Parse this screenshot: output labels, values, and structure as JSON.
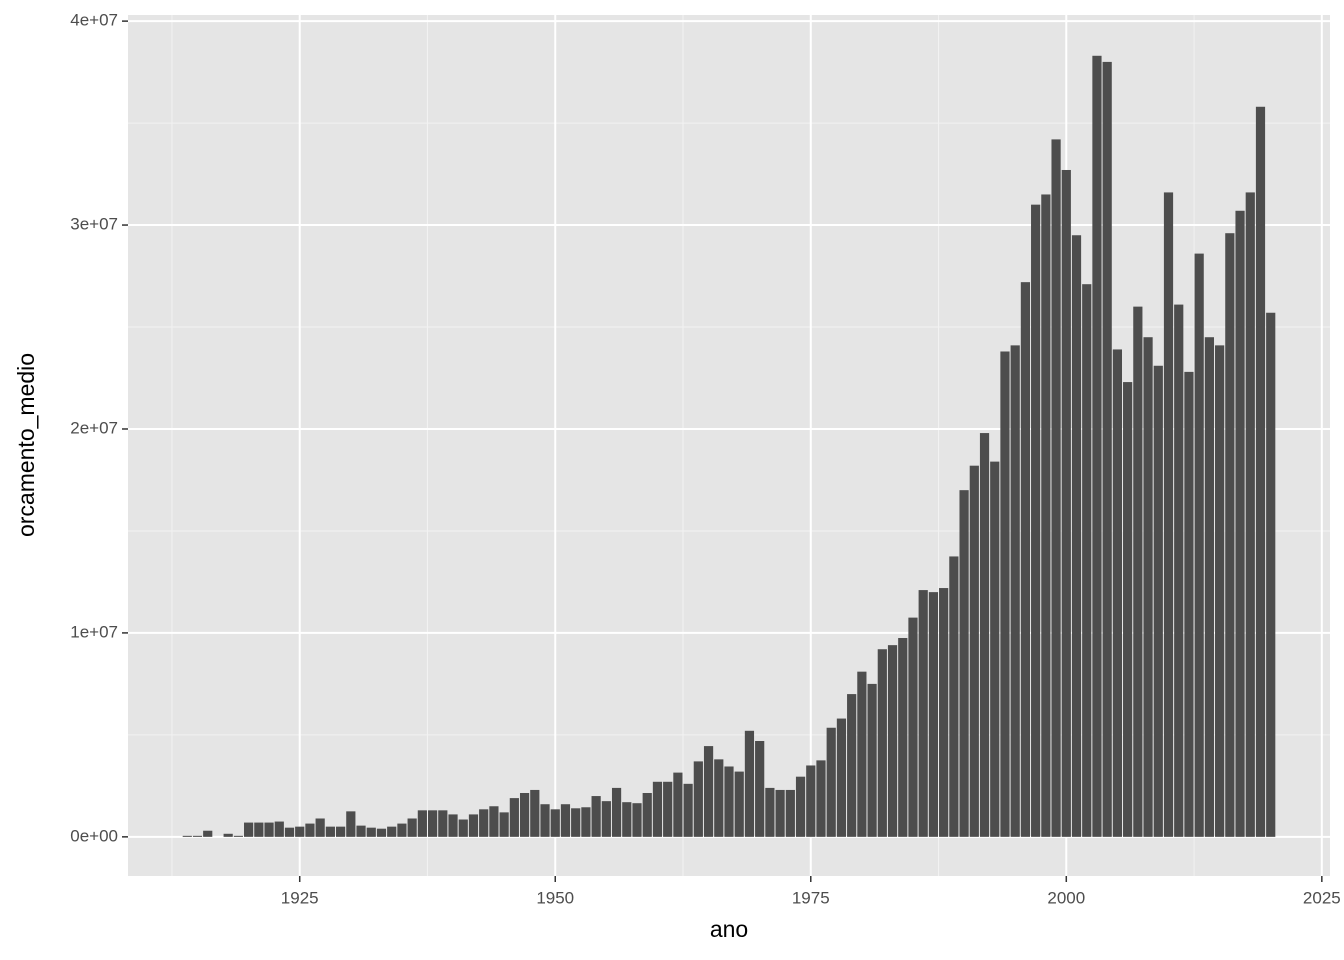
{
  "chart_data": {
    "type": "bar",
    "x_label": "ano",
    "y_label": "orcamento_medio",
    "color": "#4d4d4d",
    "grid": true,
    "x": [
      1914,
      1915,
      1916,
      1918,
      1919,
      1920,
      1921,
      1922,
      1923,
      1924,
      1925,
      1926,
      1927,
      1928,
      1929,
      1930,
      1931,
      1932,
      1933,
      1934,
      1935,
      1936,
      1937,
      1938,
      1939,
      1940,
      1941,
      1942,
      1943,
      1944,
      1945,
      1946,
      1947,
      1948,
      1949,
      1950,
      1951,
      1952,
      1953,
      1954,
      1955,
      1956,
      1957,
      1958,
      1959,
      1960,
      1961,
      1962,
      1963,
      1964,
      1965,
      1966,
      1967,
      1968,
      1969,
      1970,
      1971,
      1972,
      1973,
      1974,
      1975,
      1976,
      1977,
      1978,
      1979,
      1980,
      1981,
      1982,
      1983,
      1984,
      1985,
      1986,
      1987,
      1988,
      1989,
      1990,
      1991,
      1992,
      1993,
      1994,
      1995,
      1996,
      1997,
      1998,
      1999,
      2000,
      2001,
      2002,
      2003,
      2004,
      2005,
      2006,
      2007,
      2008,
      2009,
      2010,
      2011,
      2012,
      2013,
      2014,
      2015,
      2016,
      2017,
      2018,
      2019,
      2020
    ],
    "values": [
      50000,
      50000,
      300000,
      150000,
      50000,
      700000,
      700000,
      700000,
      750000,
      450000,
      500000,
      650000,
      900000,
      500000,
      500000,
      1250000,
      550000,
      450000,
      400000,
      500000,
      650000,
      900000,
      1300000,
      1300000,
      1300000,
      1100000,
      850000,
      1100000,
      1350000,
      1500000,
      1200000,
      1900000,
      2150000,
      2300000,
      1600000,
      1350000,
      1600000,
      1400000,
      1450000,
      2000000,
      1750000,
      2400000,
      1700000,
      1650000,
      2150000,
      2700000,
      2700000,
      3150000,
      2600000,
      3700000,
      4450000,
      3800000,
      3450000,
      3200000,
      5200000,
      4700000,
      2400000,
      2300000,
      2300000,
      2950000,
      3500000,
      3750000,
      5350000,
      5800000,
      7000000,
      8100000,
      7500000,
      9200000,
      9400000,
      9750000,
      10750000,
      12100000,
      12000000,
      12200000,
      13750000,
      17000000,
      18200000,
      19800000,
      18400000,
      23800000,
      24100000,
      27200000,
      31000000,
      31500000,
      34200000,
      32700000,
      29500000,
      27100000,
      38300000,
      38000000,
      23900000,
      22300000,
      26000000,
      24500000,
      23100000,
      31600000,
      26100000,
      22800000,
      28600000,
      24500000,
      24100000,
      29600000,
      30700000,
      31600000,
      35800000,
      25700000
    ],
    "xlim": [
      1908.2,
      2025.8
    ],
    "xticks": [
      1925,
      1950,
      1975,
      2000,
      2025
    ],
    "ylim": [
      -1920000,
      40300000
    ],
    "yticks": [
      {
        "value": 0,
        "label": "0e+00"
      },
      {
        "value": 10000000,
        "label": "1e+07"
      },
      {
        "value": 20000000,
        "label": "2e+07"
      },
      {
        "value": 30000000,
        "label": "3e+07"
      },
      {
        "value": 40000000,
        "label": "4e+07"
      }
    ]
  }
}
